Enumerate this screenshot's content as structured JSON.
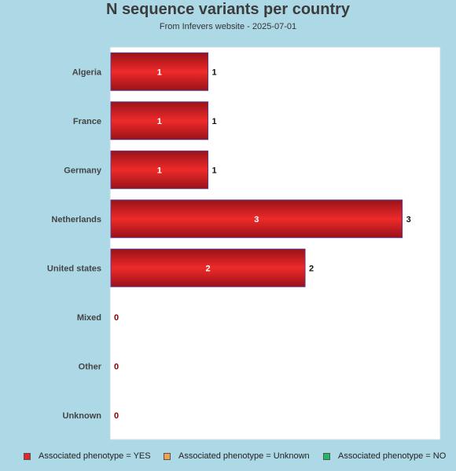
{
  "title": "N sequence variants per country",
  "subtitle": "From Infevers website - 2025-07-01",
  "chart_data": {
    "type": "bar",
    "orientation": "horizontal",
    "stacked": true,
    "grid": false,
    "legend_position": "bottom",
    "categories": [
      "Algeria",
      "France",
      "Germany",
      "Netherlands",
      "United states",
      "Mixed",
      "Other",
      "Unknown"
    ],
    "series": [
      {
        "name": "Associated phenotype = YES",
        "color": "#e02828",
        "values": [
          1,
          1,
          1,
          3,
          2,
          0,
          0,
          0
        ]
      },
      {
        "name": "Associated phenotype = Unknown",
        "color": "#f0a050",
        "values": [
          0,
          0,
          0,
          0,
          0,
          0,
          0,
          0
        ]
      },
      {
        "name": "Associated phenotype = NO",
        "color": "#20b860",
        "values": [
          0,
          0,
          0,
          0,
          0,
          0,
          0,
          0
        ]
      }
    ],
    "totals": [
      1,
      1,
      1,
      3,
      2,
      0,
      0,
      0
    ],
    "xlim": [
      0,
      3.4
    ]
  }
}
